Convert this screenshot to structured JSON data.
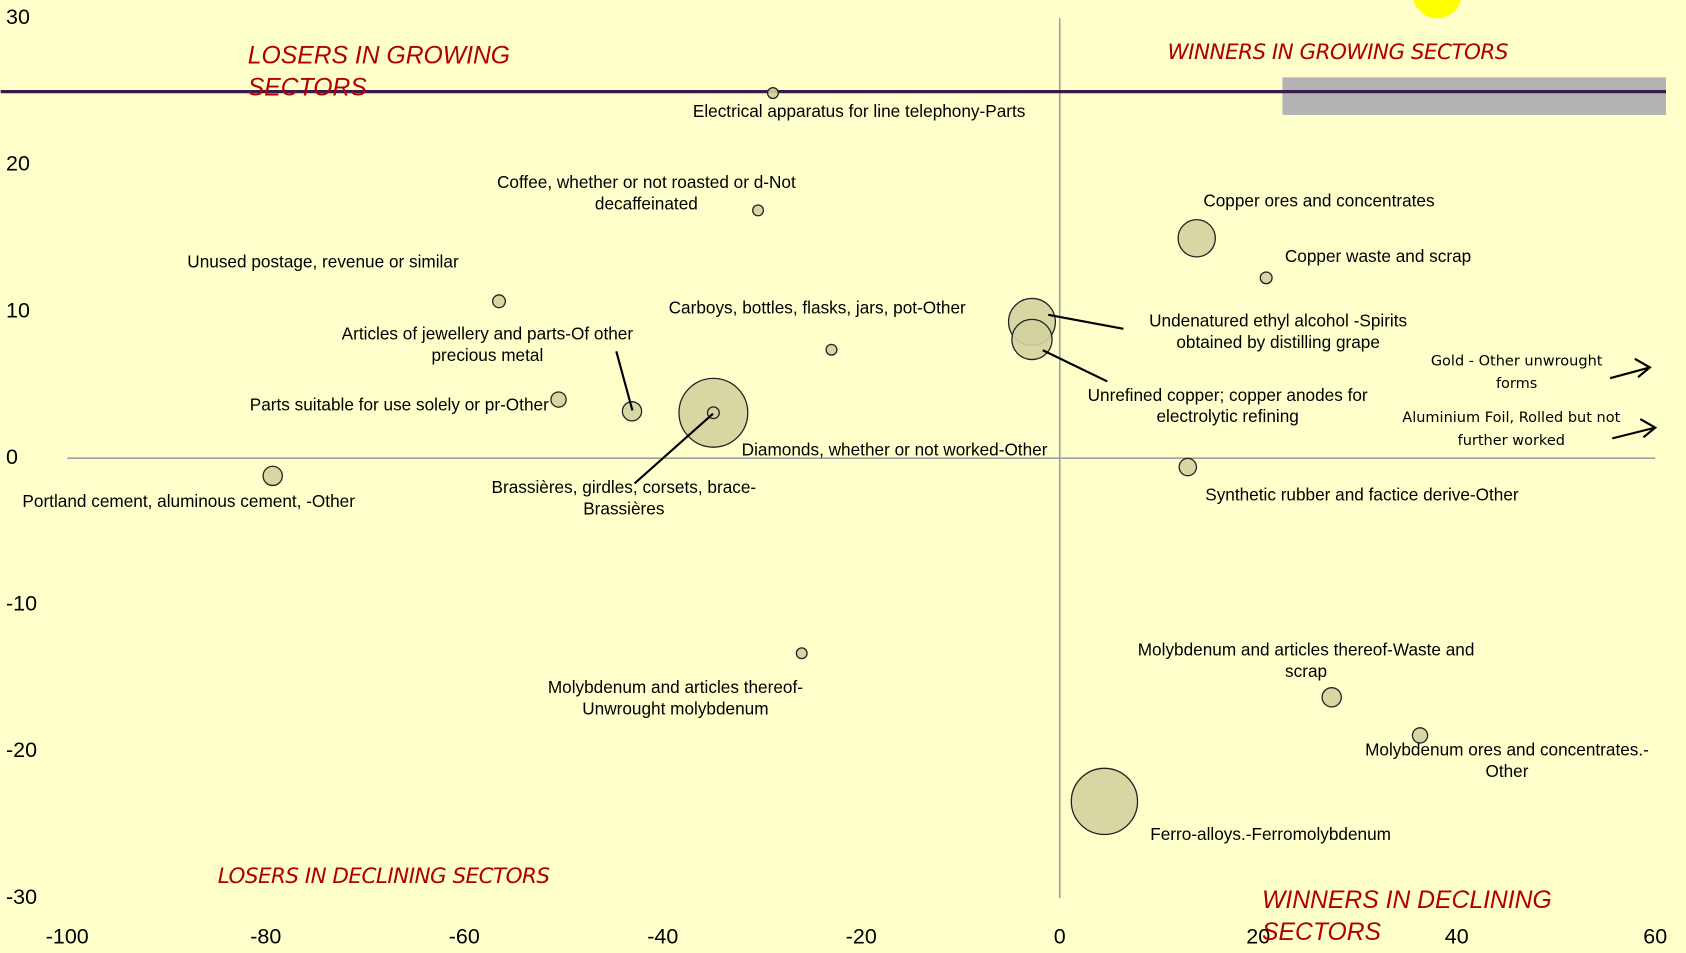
{
  "chart_data": {
    "type": "scatter",
    "xlim": [
      -100,
      60
    ],
    "ylim": [
      -30,
      30
    ],
    "xticks": [
      -100,
      -80,
      -60,
      -40,
      -20,
      0,
      20,
      40,
      60
    ],
    "yticks": [
      30,
      20,
      10,
      0,
      -10,
      -20,
      -30
    ],
    "hline": 25,
    "color": "#d3d3a0",
    "quadrant_labels": [
      "LOSERS IN GROWING SECTORS",
      "WINNERS IN GROWING SECTORS",
      "LOSERS IN DECLINING SECTORS",
      "WINNERS IN DECLINING SECTORS"
    ],
    "offchart_labels": [
      "Gold - Other unwrought forms",
      "Aluminium Foil, Rolled but not further worked"
    ],
    "points": [
      {
        "label": "Electrical apparatus for line telephony-Parts",
        "x": -28.9,
        "y": 24.9,
        "size": 1
      },
      {
        "label": "Coffee, whether or not roasted or d-Not decaffeinated",
        "x": -30.4,
        "y": 16.9,
        "size": 1
      },
      {
        "label": "Unused postage, revenue or similar",
        "x": -56.5,
        "y": 10.7,
        "size": 1.4
      },
      {
        "label": "Articles of jewellery and parts-Of other precious metal",
        "x": -43.1,
        "y": 3.2,
        "size": 3.2
      },
      {
        "label": "Parts suitable for use solely or pr-Other",
        "x": -50.5,
        "y": 4.0,
        "size": 2
      },
      {
        "label": "Diamonds, whether or not worked-Other",
        "x": -34.9,
        "y": 3.1,
        "size": 41
      },
      {
        "label": "Brassières, girdles, corsets, brace-Brassières",
        "x": -34.9,
        "y": 3.1,
        "size": 1.2
      },
      {
        "label": "Carboys, bottles, flasks, jars, pot-Other",
        "x": -23.0,
        "y": 7.4,
        "size": 1
      },
      {
        "label": "Portland cement, aluminous cement, -Other",
        "x": -79.3,
        "y": -1.2,
        "size": 3.2
      },
      {
        "label": "Undenatured ethyl alcohol -Spirits obtained by distilling grape",
        "x": -2.8,
        "y": 9.3,
        "size": 19
      },
      {
        "label": "Unrefined copper; copper anodes for electrolytic refining",
        "x": -2.8,
        "y": 8.1,
        "size": 14
      },
      {
        "label": "Copper ores and concentrates",
        "x": 13.8,
        "y": 15.0,
        "size": 12
      },
      {
        "label": "Copper waste and scrap",
        "x": 20.8,
        "y": 12.3,
        "size": 1.2
      },
      {
        "label": "Synthetic rubber and factice derive-Other",
        "x": 12.9,
        "y": -0.6,
        "size": 2.6
      },
      {
        "label": "Molybdenum and articles thereof-Unwrought molybdenum",
        "x": -26.0,
        "y": -13.3,
        "size": 1
      },
      {
        "label": "Molybdenum and articles thereof-Waste and scrap",
        "x": 27.4,
        "y": -16.3,
        "size": 3.2
      },
      {
        "label": "Molybdenum ores and concentrates.-Other",
        "x": 36.3,
        "y": -18.9,
        "size": 2
      },
      {
        "label": "Ferro-alloys.-Ferromolybdenum",
        "x": 4.5,
        "y": -23.4,
        "size": 38
      }
    ]
  }
}
